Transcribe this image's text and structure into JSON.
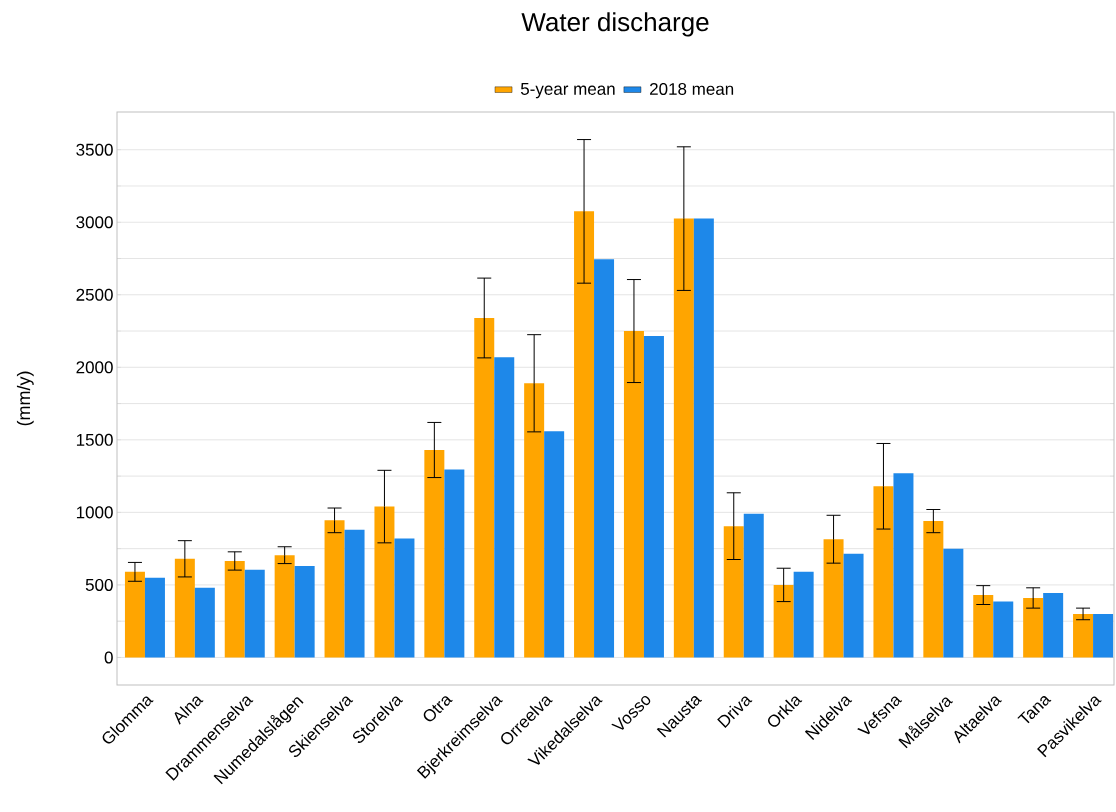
{
  "chart_data": {
    "type": "bar",
    "title": "Water discharge",
    "ylabel": "(mm/y)",
    "categories": [
      "Glomma",
      "Alna",
      "Drammenselva",
      "Numedalslågen",
      "Skienselva",
      "Storelva",
      "Otra",
      "Bjerkreimselva",
      "Orreelva",
      "Vikedalselva",
      "Vosso",
      "Nausta",
      "Driva",
      "Orkla",
      "Nidelva",
      "Vefsna",
      "Målselva",
      "Altaelva",
      "Tana",
      "Pasvikelva"
    ],
    "series": [
      {
        "name": "5-year mean",
        "color": "#ffa500",
        "values": [
          590,
          680,
          665,
          705,
          945,
          1040,
          1430,
          2340,
          1890,
          3075,
          2250,
          3025,
          905,
          500,
          815,
          1180,
          940,
          430,
          410,
          300
        ],
        "errors": [
          65,
          125,
          63,
          58,
          85,
          250,
          190,
          275,
          335,
          495,
          355,
          495,
          230,
          115,
          165,
          295,
          80,
          65,
          70,
          40
        ]
      },
      {
        "name": "2018 mean",
        "color": "#1e88e9",
        "values": [
          550,
          480,
          605,
          630,
          880,
          820,
          1295,
          2070,
          1560,
          2745,
          2215,
          3025,
          990,
          590,
          715,
          1270,
          750,
          385,
          445,
          300
        ]
      }
    ],
    "ylim": [
      -190,
      3760
    ],
    "yticks": [
      0,
      {
        "value": 250,
        "label": null
      },
      500,
      {
        "value": 750,
        "label": null
      },
      1000,
      {
        "value": 1250,
        "label": null
      },
      1500,
      {
        "value": 1750,
        "label": null
      },
      2000,
      {
        "value": 2250,
        "label": null
      },
      2500,
      {
        "value": 2750,
        "label": null
      },
      3000,
      {
        "value": 3250,
        "label": null
      },
      3500
    ],
    "grid": "y",
    "legend": "top"
  }
}
